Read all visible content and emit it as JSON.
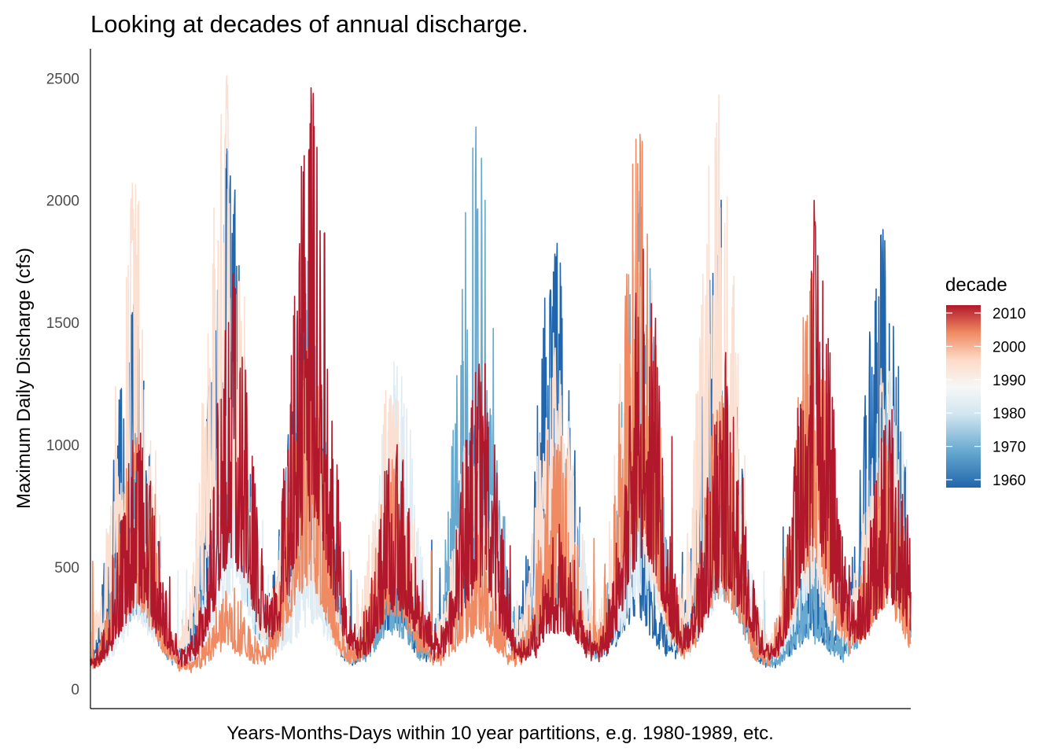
{
  "chart_data": {
    "type": "line",
    "title": "Looking at decades of annual discharge.",
    "xlabel": "Years-Months-Days within 10 year partitions, e.g. 1980-1989, etc.",
    "ylabel": "Maximum Daily Discharge (cfs)",
    "ylim": [
      -80,
      2620
    ],
    "y_ticks": [
      "0",
      "500",
      "1000",
      "1500",
      "2000",
      "2500"
    ],
    "y_tick_values": [
      0,
      500,
      1000,
      1500,
      2000,
      2500
    ],
    "x_ticks_shown": false,
    "grid": false,
    "legend": {
      "title": "decade",
      "placement": "right",
      "type": "colorbar",
      "labels": [
        "2010",
        "2000",
        "1990",
        "1980",
        "1970",
        "1960"
      ],
      "values": [
        2010,
        2000,
        1990,
        1980,
        1970,
        1960
      ],
      "colors": [
        "#b2182b",
        "#ef8a62",
        "#fddbc7",
        "#f7f7f7",
        "#d1e5f0",
        "#67a9cf",
        "#2166ac"
      ]
    },
    "x_unit": "years into decade",
    "x_range": [
      0,
      10
    ],
    "annual_peak_positions": [
      0.55,
      1.7,
      2.65,
      3.7,
      4.7,
      5.7,
      6.7,
      7.7,
      8.8,
      9.7
    ],
    "series": [
      {
        "decade": 1960,
        "color": "#2166ac",
        "baseline": 85,
        "annual_peaks": [
          1540,
          2210,
          1600,
          700,
          1100,
          1780,
          800,
          1910,
          500,
          1880
        ]
      },
      {
        "decade": 1970,
        "color": "#67a9cf",
        "baseline": 80,
        "annual_peaks": [
          900,
          1600,
          1750,
          600,
          2300,
          1000,
          2040,
          1200,
          500,
          1200
        ]
      },
      {
        "decade": 1980,
        "color": "#e0ecf4",
        "baseline": 95,
        "annual_peaks": [
          650,
          1150,
          700,
          1320,
          900,
          1200,
          1150,
          1150,
          1250,
          1300
        ]
      },
      {
        "decade": 1990,
        "color": "#fbe0d2",
        "baseline": 110,
        "annual_peaks": [
          2070,
          2510,
          1350,
          1200,
          1000,
          1350,
          1900,
          2430,
          1150,
          1250
        ]
      },
      {
        "decade": 2000,
        "color": "#ef8a62",
        "baseline": 75,
        "annual_peaks": [
          1000,
          350,
          1400,
          900,
          600,
          1000,
          2270,
          1200,
          1700,
          1000
        ]
      },
      {
        "decade": 2010,
        "color": "#b2182b",
        "baseline": 90,
        "annual_peaks": [
          1000,
          1700,
          2460,
          1000,
          1330,
          600,
          1800,
          1320,
          1890,
          1100
        ]
      }
    ]
  }
}
